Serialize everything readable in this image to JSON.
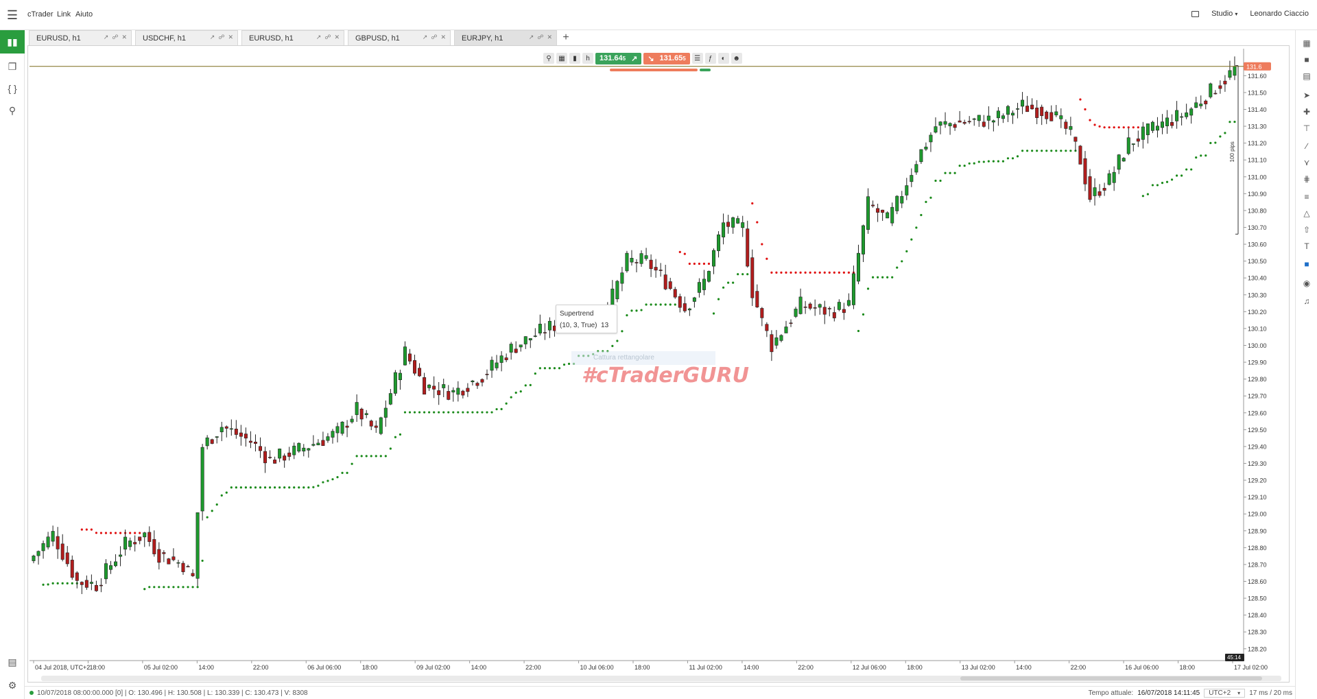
{
  "menubar": {
    "items": [
      "cTrader",
      "Link",
      "Aiuto"
    ],
    "studio_label": "Studio",
    "user_name": "Leonardo Ciaccio"
  },
  "tabs": [
    {
      "label": "EURUSD, h1"
    },
    {
      "label": "USDCHF, h1"
    },
    {
      "label": "EURUSD, h1"
    },
    {
      "label": "GBPUSD, h1"
    },
    {
      "label": "EURJPY, h1",
      "active": true
    }
  ],
  "toolbar": {
    "buy_price": "131.64",
    "buy_suffix": "5",
    "sell_price": "131.65",
    "sell_suffix": "5"
  },
  "indicator": {
    "name": "Supertrend",
    "params": "(10, 3, True)",
    "value": "13"
  },
  "watermark": "#cTraderGURU",
  "capture_hint": "Cattura rettangolare",
  "pips_label": "100 pips",
  "current_price_label": "131.6",
  "countdown": "45:14",
  "colors": {
    "bull": "#1e9a2e",
    "bear": "#b11d1d",
    "st_up": "#1a8a1a",
    "st_down": "#e01010",
    "accent": "#2a9d3e"
  },
  "status": {
    "ohlc": "10/07/2018 08:00:00.000 [0] | O: 130.496 | H: 130.508 | L: 130.339 | C: 130.473 | V: 8308",
    "time_label": "Tempo attuale:",
    "time_value": "16/07/2018 14:11:45",
    "timezone": "UTC+2",
    "latency": "17 ms / 20 ms"
  },
  "chart_data": {
    "type": "candlestick",
    "symbol": "EURJPY",
    "timeframe": "h1",
    "ylim": [
      128.13,
      131.76
    ],
    "y_ticks": [
      "131.60",
      "131.50",
      "131.40",
      "131.30",
      "131.20",
      "131.10",
      "131.00",
      "130.90",
      "130.80",
      "130.70",
      "130.60",
      "130.50",
      "130.40",
      "130.30",
      "130.20",
      "130.10",
      "130.00",
      "129.90",
      "129.80",
      "129.70",
      "129.60",
      "129.50",
      "129.40",
      "129.30",
      "129.20",
      "129.10",
      "129.00",
      "128.90",
      "128.80",
      "128.70",
      "128.60",
      "128.50",
      "128.40",
      "128.30",
      "128.20"
    ],
    "x_ticks": [
      "04 Jul 2018, UTC+2",
      "18:00",
      "05 Jul 02:00",
      "14:00",
      "22:00",
      "06 Jul 06:00",
      "18:00",
      "09 Jul 02:00",
      "14:00",
      "22:00",
      "10 Jul 06:00",
      "18:00",
      "11 Jul 02:00",
      "14:00",
      "22:00",
      "12 Jul 06:00",
      "18:00",
      "13 Jul 02:00",
      "14:00",
      "22:00",
      "16 Jul 06:00",
      "18:00",
      "17 Jul 02:00"
    ],
    "keypoints": [
      [
        0,
        128.72
      ],
      [
        5,
        128.88
      ],
      [
        10,
        128.6
      ],
      [
        14,
        128.58
      ],
      [
        20,
        128.82
      ],
      [
        24,
        128.88
      ],
      [
        27,
        128.76
      ],
      [
        32,
        128.7
      ],
      [
        34,
        128.62
      ],
      [
        36,
        129.4
      ],
      [
        40,
        129.52
      ],
      [
        46,
        129.43
      ],
      [
        50,
        129.32
      ],
      [
        56,
        129.38
      ],
      [
        64,
        129.48
      ],
      [
        68,
        129.62
      ],
      [
        72,
        129.48
      ],
      [
        78,
        129.96
      ],
      [
        82,
        129.76
      ],
      [
        88,
        129.72
      ],
      [
        94,
        129.82
      ],
      [
        100,
        129.98
      ],
      [
        106,
        130.08
      ],
      [
        112,
        130.16
      ],
      [
        120,
        130.22
      ],
      [
        124,
        130.5
      ],
      [
        128,
        130.5
      ],
      [
        132,
        130.38
      ],
      [
        136,
        130.22
      ],
      [
        140,
        130.38
      ],
      [
        144,
        130.72
      ],
      [
        148,
        130.7
      ],
      [
        150,
        130.32
      ],
      [
        152,
        130.14
      ],
      [
        154,
        130.0
      ],
      [
        160,
        130.24
      ],
      [
        166,
        130.2
      ],
      [
        170,
        130.24
      ],
      [
        174,
        130.84
      ],
      [
        178,
        130.74
      ],
      [
        180,
        130.84
      ],
      [
        184,
        131.1
      ],
      [
        188,
        131.3
      ],
      [
        192,
        131.32
      ],
      [
        200,
        131.34
      ],
      [
        206,
        131.42
      ],
      [
        212,
        131.38
      ],
      [
        216,
        131.25
      ],
      [
        218,
        131.1
      ],
      [
        220,
        130.88
      ],
      [
        224,
        130.98
      ],
      [
        228,
        131.2
      ],
      [
        234,
        131.3
      ],
      [
        240,
        131.38
      ],
      [
        248,
        131.58
      ],
      [
        250,
        131.64
      ]
    ],
    "supertrend": {
      "period": 10,
      "multiplier": 3,
      "flag": true,
      "last_value": "13"
    }
  }
}
